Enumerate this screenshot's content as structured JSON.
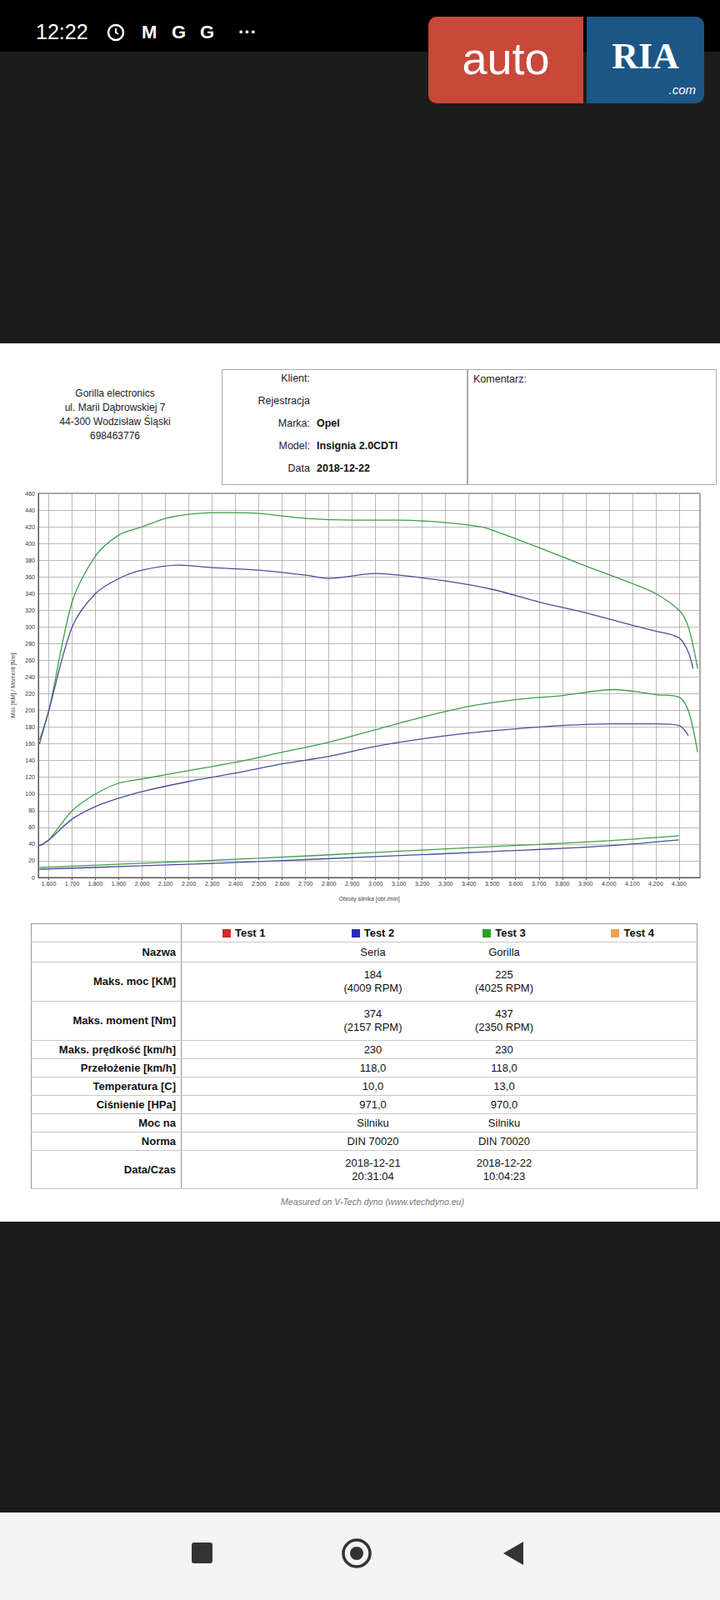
{
  "status_bar": {
    "time": "12:22",
    "icons": [
      "M",
      "G",
      "G",
      "···"
    ]
  },
  "logo": {
    "text1": "auto",
    "text2": "RIA",
    "text3": ".com"
  },
  "header": {
    "company": [
      "Gorilla electronics",
      "ul. Marii Dąbrowskiej 7",
      "44-300 Wodzisław Śląski",
      "698463776"
    ],
    "fields": [
      {
        "label": "Klient:"
      },
      {
        "label": "Rejestracja"
      },
      {
        "label": "Marka:",
        "value": "Opel"
      },
      {
        "label": "Model:",
        "value": "Insignia 2.0CDTI"
      },
      {
        "label": "Data",
        "value": "2018-12-22"
      }
    ],
    "comment_label": "Komentarz:"
  },
  "chart_data": {
    "type": "line",
    "x_label": "Obroty silnika [obr./min]",
    "y_label": "Moc [KM] / Moment [Nm]",
    "xlim": [
      1555,
      4390
    ],
    "xticks": [
      {
        "value": 1600,
        "label": "1.600"
      },
      {
        "value": 1700,
        "label": "1.700"
      },
      {
        "value": 1800,
        "label": "1.800"
      },
      {
        "value": 1900,
        "label": "1.900"
      },
      {
        "value": 2000,
        "label": "2.000"
      },
      {
        "value": 2100,
        "label": "2.100"
      },
      {
        "value": 2200,
        "label": "2.200"
      },
      {
        "value": 2300,
        "label": "2.300"
      },
      {
        "value": 2400,
        "label": "2.400"
      },
      {
        "value": 2500,
        "label": "2.500"
      },
      {
        "value": 2600,
        "label": "2.600"
      },
      {
        "value": 2700,
        "label": "2.700"
      },
      {
        "value": 2800,
        "label": "2.800"
      },
      {
        "value": 2900,
        "label": "2.900"
      },
      {
        "value": 3000,
        "label": "3.000"
      },
      {
        "value": 3100,
        "label": "3.100"
      },
      {
        "value": 3200,
        "label": "3.200"
      },
      {
        "value": 3300,
        "label": "3.300"
      },
      {
        "value": 3400,
        "label": "3.400"
      },
      {
        "value": 3500,
        "label": "3.500"
      },
      {
        "value": 3600,
        "label": "3.600"
      },
      {
        "value": 3700,
        "label": "3.700"
      },
      {
        "value": 3800,
        "label": "3.800"
      },
      {
        "value": 3900,
        "label": "3.900"
      },
      {
        "value": 4000,
        "label": "4.000"
      },
      {
        "value": 4100,
        "label": "4.100"
      },
      {
        "value": 4200,
        "label": "4.200"
      },
      {
        "value": 4300,
        "label": "4.300"
      }
    ],
    "ylim": [
      0,
      460
    ],
    "yticks": [
      0,
      20,
      40,
      60,
      80,
      100,
      120,
      140,
      160,
      180,
      200,
      220,
      240,
      260,
      280,
      300,
      320,
      340,
      360,
      380,
      400,
      420,
      440,
      460
    ],
    "grid": true,
    "series": [
      {
        "color": "#3c9f48",
        "x": [
          1560,
          1600,
          1700,
          1800,
          1900,
          2000,
          2100,
          2200,
          2350,
          2500,
          2700,
          2900,
          3100,
          3300,
          3450,
          3500,
          3700,
          3900,
          4100,
          4200,
          4300,
          4340,
          4380
        ],
        "values": [
          165,
          200,
          330,
          385,
          410,
          420,
          430,
          435,
          437,
          436,
          430,
          428,
          428,
          425,
          420,
          416,
          395,
          373,
          352,
          340,
          320,
          300,
          250
        ]
      },
      {
        "color": "#4c4c9c",
        "x": [
          1560,
          1600,
          1700,
          1800,
          1900,
          2000,
          2157,
          2300,
          2500,
          2700,
          2800,
          3000,
          3100,
          3300,
          3500,
          3700,
          3900,
          4100,
          4200,
          4300,
          4340,
          4360
        ],
        "values": [
          160,
          200,
          300,
          340,
          358,
          368,
          374,
          371,
          368,
          362,
          358,
          364,
          362,
          355,
          345,
          330,
          317,
          302,
          295,
          287,
          270,
          250
        ]
      },
      {
        "color": "#3c9f48",
        "x": [
          1560,
          1600,
          1700,
          1800,
          1900,
          2000,
          2200,
          2400,
          2600,
          2800,
          3000,
          3200,
          3400,
          3600,
          3800,
          4025,
          4200,
          4300,
          4340,
          4380
        ],
        "values": [
          38,
          45,
          80,
          100,
          113,
          118,
          128,
          138,
          150,
          162,
          177,
          192,
          205,
          213,
          218,
          225,
          219,
          216,
          200,
          150
        ]
      },
      {
        "color": "#4c4c9c",
        "x": [
          1560,
          1600,
          1700,
          1800,
          1900,
          2000,
          2200,
          2400,
          2600,
          2800,
          3000,
          3200,
          3400,
          3600,
          3800,
          4009,
          4200,
          4300,
          4340
        ],
        "values": [
          38,
          45,
          70,
          85,
          95,
          103,
          115,
          125,
          136,
          145,
          157,
          166,
          173,
          178,
          182,
          184,
          184,
          182,
          170
        ]
      },
      {
        "color": "#3c9f48",
        "x": [
          1560,
          2000,
          2500,
          3000,
          3500,
          4000,
          4300
        ],
        "values": [
          12,
          17,
          23,
          30,
          37,
          44,
          50
        ]
      },
      {
        "color": "#4c4c9c",
        "x": [
          1560,
          2000,
          2500,
          3000,
          3500,
          4000,
          4300
        ],
        "values": [
          10,
          14,
          19,
          25,
          31,
          38,
          45
        ]
      }
    ]
  },
  "table": {
    "legend": [
      {
        "name": "Test 1",
        "color": "#d42a2a"
      },
      {
        "name": "Test 2",
        "color": "#2b2bb8"
      },
      {
        "name": "Test 3",
        "color": "#2aa02a"
      },
      {
        "name": "Test 4",
        "color": "#f0a050"
      }
    ],
    "rows": [
      [
        "Nazwa",
        [
          "Seria"
        ],
        [
          "Gorilla"
        ]
      ],
      [
        "Maks. moc [KM]",
        [
          "184",
          "(4009 RPM)"
        ],
        [
          "225",
          "(4025 RPM)"
        ]
      ],
      [
        "Maks. moment [Nm]",
        [
          "374",
          "(2157 RPM)"
        ],
        [
          "437",
          "(2350 RPM)"
        ]
      ],
      [
        "Maks. prędkość [km/h]",
        [
          "230"
        ],
        [
          "230"
        ]
      ],
      [
        "Przełożenie [km/h]",
        [
          "118,0"
        ],
        [
          "118,0"
        ]
      ],
      [
        "Temperatura [C]",
        [
          "10,0"
        ],
        [
          "13,0"
        ]
      ],
      [
        "Ciśnienie [HPa]",
        [
          "971,0"
        ],
        [
          "970,0"
        ]
      ],
      [
        "Moc na",
        [
          "Silniku"
        ],
        [
          "Silniku"
        ]
      ],
      [
        "Norma",
        [
          "DIN 70020"
        ],
        [
          "DIN 70020"
        ]
      ],
      [
        "Data/Czas",
        [
          "2018-12-21",
          "20:31:04"
        ],
        [
          "2018-12-22",
          "10:04:23"
        ]
      ]
    ]
  },
  "footer": "Measured on V-Tech dyno (www.vtechdyno.eu)"
}
